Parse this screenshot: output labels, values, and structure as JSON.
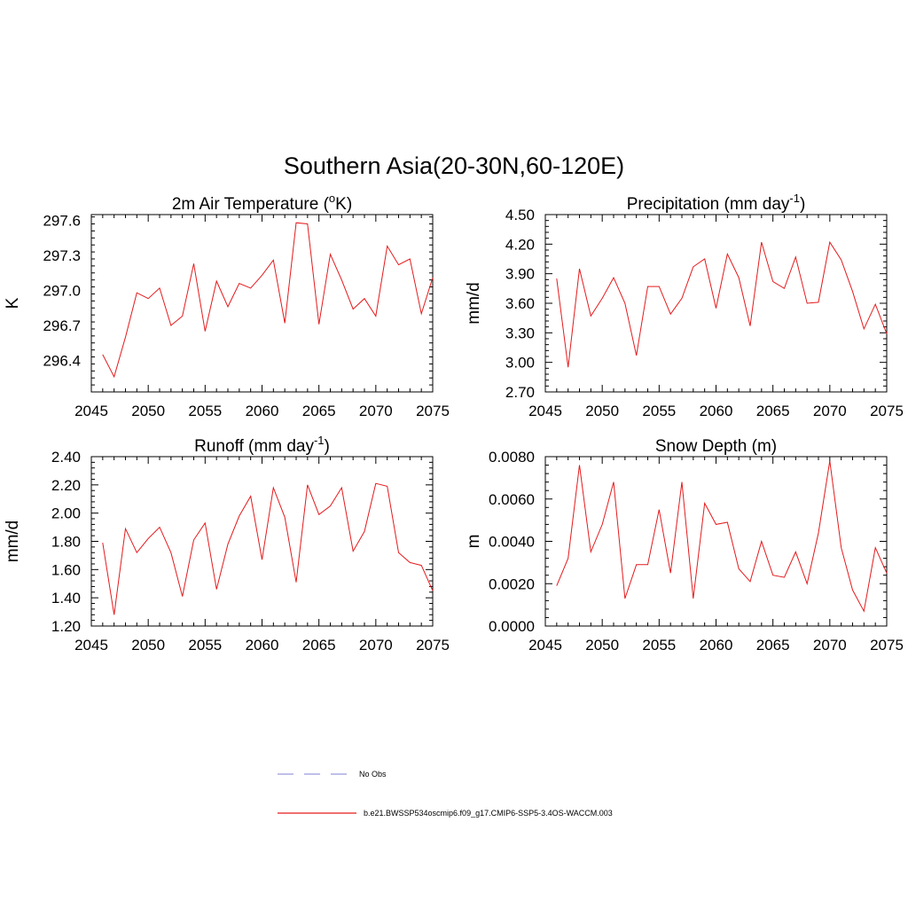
{
  "figure": {
    "title": "Southern Asia(20-30N,60-120E)"
  },
  "colors": {
    "series": "#e41a1c",
    "obs": "#9999dd",
    "axis": "#000000"
  },
  "legend": {
    "items": [
      {
        "label": "No Obs",
        "style": "dashed"
      },
      {
        "label": "b.e21.BWSSP534oscmip6.f09_g17.CMIP6-SSP5-3.4OS-WACCM.003",
        "style": "solid"
      }
    ]
  },
  "chart_data": [
    {
      "type": "line",
      "title": "2m Air Temperature (",
      "title_sup": "o",
      "title_after": "K)",
      "title_sup2": "",
      "title_after2": "",
      "xlabel": "",
      "ylabel": "K",
      "xlim": [
        2045,
        2075
      ],
      "ylim": [
        296.13,
        297.65
      ],
      "xticks": [
        2045,
        2050,
        2055,
        2060,
        2065,
        2070,
        2075
      ],
      "xtick_labels": [
        "2045",
        "2050",
        "2055",
        "2060",
        "2065",
        "2070",
        "2075"
      ],
      "yticks": [
        296.4,
        296.7,
        297.0,
        297.3,
        297.6
      ],
      "ytick_labels": [
        "296.4",
        "296.7",
        "297.0",
        "297.3",
        "297.6"
      ],
      "yminor": 0.06,
      "series": [
        {
          "name": "b.e21.BWSSP534oscmip6.f09_g17.CMIP6-SSP5-3.4OS-WACCM.003",
          "x": [
            2046,
            2047,
            2048,
            2049,
            2050,
            2051,
            2052,
            2053,
            2054,
            2055,
            2056,
            2057,
            2058,
            2059,
            2060,
            2061,
            2062,
            2063,
            2064,
            2065,
            2066,
            2067,
            2068,
            2069,
            2070,
            2071,
            2072,
            2073,
            2074,
            2075
          ],
          "values": [
            296.45,
            296.26,
            296.6,
            296.98,
            296.93,
            297.02,
            296.7,
            296.78,
            297.23,
            296.65,
            297.08,
            296.86,
            297.06,
            297.02,
            297.13,
            297.26,
            296.72,
            297.58,
            297.57,
            296.71,
            297.31,
            297.09,
            296.84,
            296.93,
            296.78,
            297.38,
            297.22,
            297.27,
            296.8,
            297.11
          ]
        }
      ]
    },
    {
      "type": "line",
      "title": "Precipitation (mm day",
      "title_sup": "-1",
      "title_after": ")",
      "title_sup2": "",
      "title_after2": "",
      "xlabel": "",
      "ylabel": "mm/d",
      "xlim": [
        2045,
        2075
      ],
      "ylim": [
        2.7,
        4.5
      ],
      "xticks": [
        2045,
        2050,
        2055,
        2060,
        2065,
        2070,
        2075
      ],
      "xtick_labels": [
        "2045",
        "2050",
        "2055",
        "2060",
        "2065",
        "2070",
        "2075"
      ],
      "yticks": [
        2.7,
        3.0,
        3.3,
        3.6,
        3.9,
        4.2,
        4.5
      ],
      "ytick_labels": [
        "2.70",
        "3.00",
        "3.30",
        "3.60",
        "3.90",
        "4.20",
        "4.50"
      ],
      "yminor": 0.06,
      "series": [
        {
          "name": "b.e21.BWSSP534oscmip6.f09_g17.CMIP6-SSP5-3.4OS-WACCM.003",
          "x": [
            2046,
            2047,
            2048,
            2049,
            2050,
            2051,
            2052,
            2053,
            2054,
            2055,
            2056,
            2057,
            2058,
            2059,
            2060,
            2061,
            2062,
            2063,
            2064,
            2065,
            2066,
            2067,
            2068,
            2069,
            2070,
            2071,
            2072,
            2073,
            2074,
            2075
          ],
          "values": [
            3.85,
            2.95,
            3.95,
            3.47,
            3.65,
            3.86,
            3.6,
            3.07,
            3.77,
            3.77,
            3.49,
            3.65,
            3.97,
            4.05,
            3.55,
            4.1,
            3.86,
            3.37,
            4.22,
            3.82,
            3.75,
            4.07,
            3.6,
            3.61,
            4.22,
            4.04,
            3.72,
            3.34,
            3.59,
            3.29
          ]
        }
      ]
    },
    {
      "type": "line",
      "title": "Runoff (mm day",
      "title_sup": "-1",
      "title_after": ")",
      "title_sup2": "",
      "title_after2": "",
      "xlabel": "",
      "ylabel": "mm/d",
      "xlim": [
        2045,
        2075
      ],
      "ylim": [
        1.2,
        2.4
      ],
      "xticks": [
        2045,
        2050,
        2055,
        2060,
        2065,
        2070,
        2075
      ],
      "xtick_labels": [
        "2045",
        "2050",
        "2055",
        "2060",
        "2065",
        "2070",
        "2075"
      ],
      "yticks": [
        1.2,
        1.4,
        1.6,
        1.8,
        2.0,
        2.2,
        2.4
      ],
      "ytick_labels": [
        "1.20",
        "1.40",
        "1.60",
        "1.80",
        "2.00",
        "2.20",
        "2.40"
      ],
      "yminor": 0.04,
      "series": [
        {
          "name": "b.e21.BWSSP534oscmip6.f09_g17.CMIP6-SSP5-3.4OS-WACCM.003",
          "x": [
            2046,
            2047,
            2048,
            2049,
            2050,
            2051,
            2052,
            2053,
            2054,
            2055,
            2056,
            2057,
            2058,
            2059,
            2060,
            2061,
            2062,
            2063,
            2064,
            2065,
            2066,
            2067,
            2068,
            2069,
            2070,
            2071,
            2072,
            2073,
            2074,
            2075
          ],
          "values": [
            1.79,
            1.28,
            1.89,
            1.72,
            1.82,
            1.9,
            1.72,
            1.41,
            1.81,
            1.93,
            1.46,
            1.78,
            1.98,
            2.12,
            1.67,
            2.18,
            1.97,
            1.51,
            2.2,
            1.99,
            2.05,
            2.18,
            1.73,
            1.87,
            2.21,
            2.19,
            1.72,
            1.65,
            1.63,
            1.45
          ]
        }
      ]
    },
    {
      "type": "line",
      "title": "Snow Depth (m)",
      "title_sup": "",
      "title_after": "",
      "title_sup2": "",
      "title_after2": "",
      "xlabel": "",
      "ylabel": "m",
      "xlim": [
        2045,
        2075
      ],
      "ylim": [
        0.0,
        0.008
      ],
      "xticks": [
        2045,
        2050,
        2055,
        2060,
        2065,
        2070,
        2075
      ],
      "xtick_labels": [
        "2045",
        "2050",
        "2055",
        "2060",
        "2065",
        "2070",
        "2075"
      ],
      "yticks": [
        0.0,
        0.002,
        0.004,
        0.006,
        0.008
      ],
      "ytick_labels": [
        "0.0000",
        "0.0020",
        "0.0040",
        "0.0060",
        "0.0080"
      ],
      "yminor": 0.0004,
      "series": [
        {
          "name": "b.e21.BWSSP534oscmip6.f09_g17.CMIP6-SSP5-3.4OS-WACCM.003",
          "x": [
            2046,
            2047,
            2048,
            2049,
            2050,
            2051,
            2052,
            2053,
            2054,
            2055,
            2056,
            2057,
            2058,
            2059,
            2060,
            2061,
            2062,
            2063,
            2064,
            2065,
            2066,
            2067,
            2068,
            2069,
            2070,
            2071,
            2072,
            2073,
            2074,
            2075
          ],
          "values": [
            0.0019,
            0.0032,
            0.0076,
            0.0035,
            0.0048,
            0.0068,
            0.0013,
            0.0029,
            0.0029,
            0.0055,
            0.0025,
            0.0068,
            0.0013,
            0.0058,
            0.0048,
            0.0049,
            0.0027,
            0.0021,
            0.004,
            0.0024,
            0.0023,
            0.0035,
            0.002,
            0.0044,
            0.0078,
            0.0037,
            0.0017,
            0.0007,
            0.0037,
            0.0025
          ]
        }
      ]
    }
  ]
}
